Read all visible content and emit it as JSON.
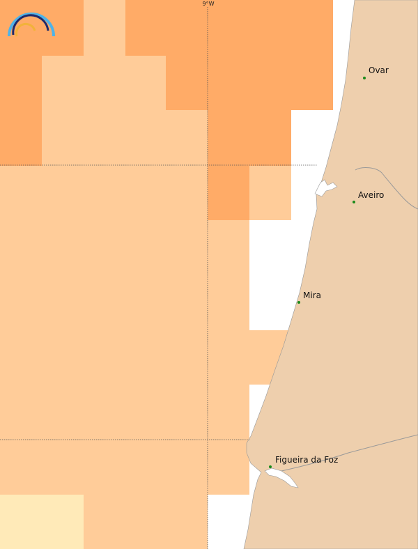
{
  "map": {
    "colors": {
      "land": "#eecfad",
      "sea_empty": "#ffffff",
      "cell_dark": "#ffab67",
      "cell_light": "#ffcc99",
      "cell_pale": "#ffeab8",
      "coast_line": "#999999",
      "grid_line": "#555555",
      "city_marker": "#1a8a1a"
    },
    "graticule": {
      "meridian_label": "9°W"
    },
    "cities": [
      {
        "name": "Ovar"
      },
      {
        "name": "Aveiro"
      },
      {
        "name": "Mira"
      },
      {
        "name": "Figueira da Foz"
      }
    ],
    "logo": {
      "name": "rainbow-logo",
      "colors": [
        "#4fb3e8",
        "#1f2a6b",
        "#f2b23a"
      ]
    }
  }
}
